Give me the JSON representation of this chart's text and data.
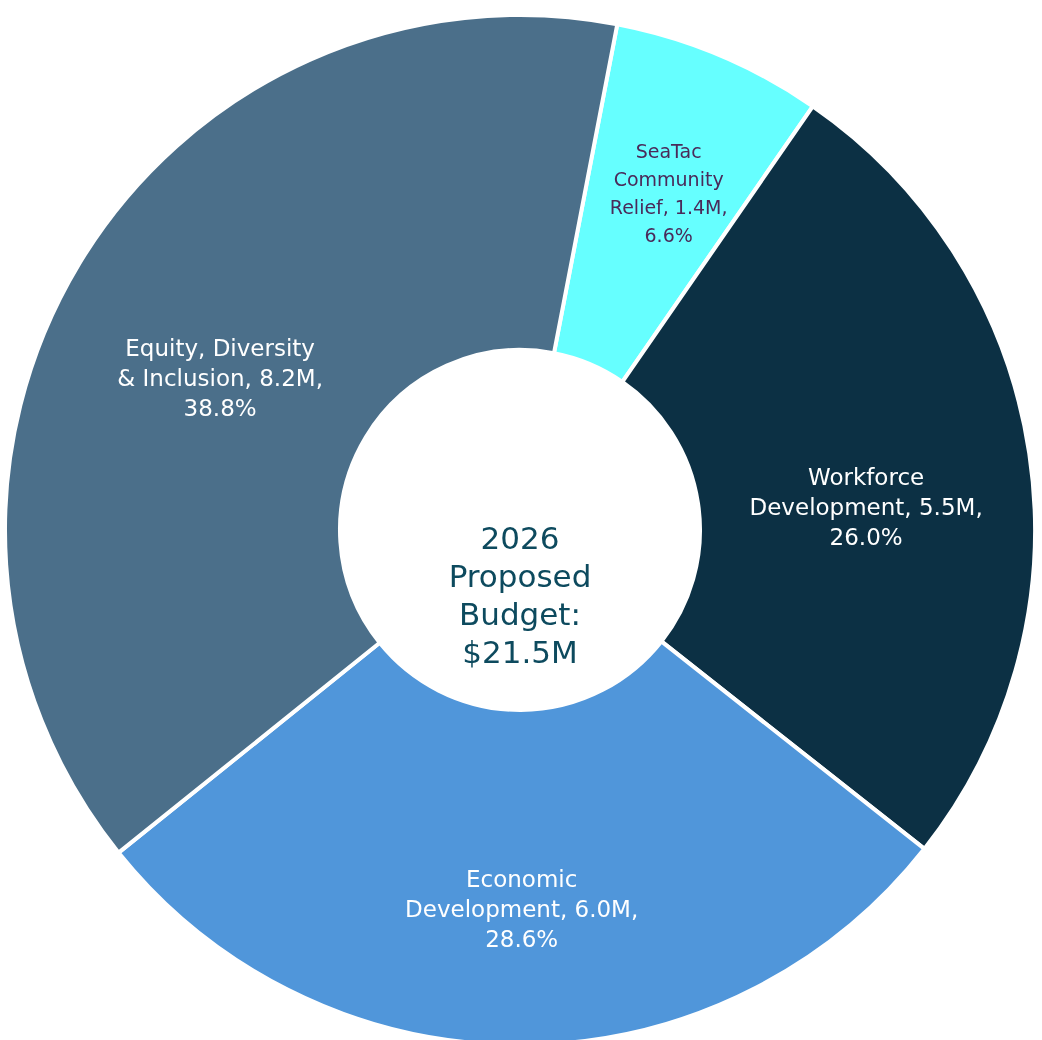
{
  "chart_data": {
    "type": "donut",
    "categories": [
      "SeaTac Community Relief",
      "Workforce Development",
      "Economic Development",
      "Equity, Diversity & Inclusion"
    ],
    "values": [
      6.6,
      26.0,
      28.6,
      38.8
    ],
    "value_labels": [
      "1.4M, 6.6%",
      "5.5M, 26.0%",
      "6.0M, 28.6%",
      "8.2M, 38.8%"
    ],
    "colors": [
      "#66ffff",
      "#0c3044",
      "#5096da",
      "#4b6f8a"
    ],
    "annotations": [
      "2026 Proposed Budget: $21.5M"
    ]
  }
}
